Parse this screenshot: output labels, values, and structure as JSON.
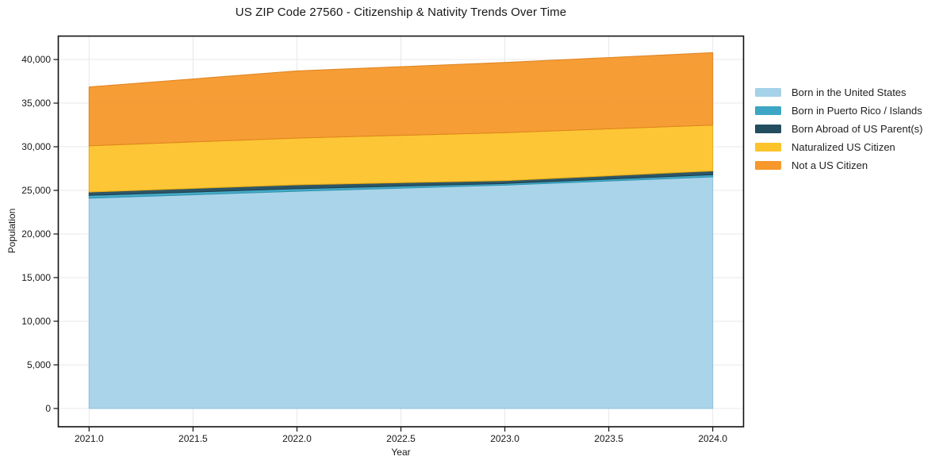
{
  "chart_data": {
    "type": "area",
    "stacked": true,
    "title": "US ZIP Code 27560 - Citizenship & Nativity Trends Over Time",
    "xlabel": "Year",
    "ylabel": "Population",
    "x": [
      2021,
      2022,
      2023,
      2024
    ],
    "series": [
      {
        "key": "born-us",
        "name": "Born in the United States",
        "color": "#A5D2E8",
        "edge": "#8CC1DB",
        "values": [
          24100,
          24900,
          25600,
          26550
        ]
      },
      {
        "key": "puerto-rico-islands",
        "name": "Born in Puerto Rico / Islands",
        "color": "#3DA6C4",
        "edge": "#2F93B1",
        "values": [
          330,
          290,
          190,
          250
        ]
      },
      {
        "key": "born-abroad",
        "name": "Born Abroad of US Parent(s)",
        "color": "#224D5F",
        "edge": "#1B3F4F",
        "values": [
          380,
          450,
          330,
          430
        ]
      },
      {
        "key": "naturalized",
        "name": "Naturalized US Citizen",
        "color": "#FDC32B",
        "edge": "#E5AB13",
        "values": [
          5300,
          5350,
          5500,
          5250
        ]
      },
      {
        "key": "not-citizen",
        "name": "Not a US Citizen",
        "color": "#F6982B",
        "edge": "#DF831D",
        "values": [
          6750,
          7700,
          8050,
          8300
        ]
      }
    ],
    "totals": [
      36860,
      38690,
      39670,
      40780
    ],
    "xticks": {
      "values": [
        2021,
        2021.5,
        2022,
        2022.5,
        2023,
        2023.5,
        2024
      ],
      "labels": [
        "2021.0",
        "2021.5",
        "2022.0",
        "2022.5",
        "2023.0",
        "2023.5",
        "2024.0"
      ]
    },
    "yticks": {
      "values": [
        0,
        5000,
        10000,
        15000,
        20000,
        25000,
        30000,
        35000,
        40000
      ],
      "labels": [
        "0",
        "5,000",
        "10,000",
        "15,000",
        "20,000",
        "25,000",
        "30,000",
        "35,000",
        "40,000"
      ]
    },
    "xlim": [
      2020.85,
      2024.15
    ],
    "ylim": [
      -2140,
      42730
    ],
    "grid": true,
    "grid_color": "#e8e8e8",
    "frame_color": "#111111",
    "legend_position": "right"
  }
}
